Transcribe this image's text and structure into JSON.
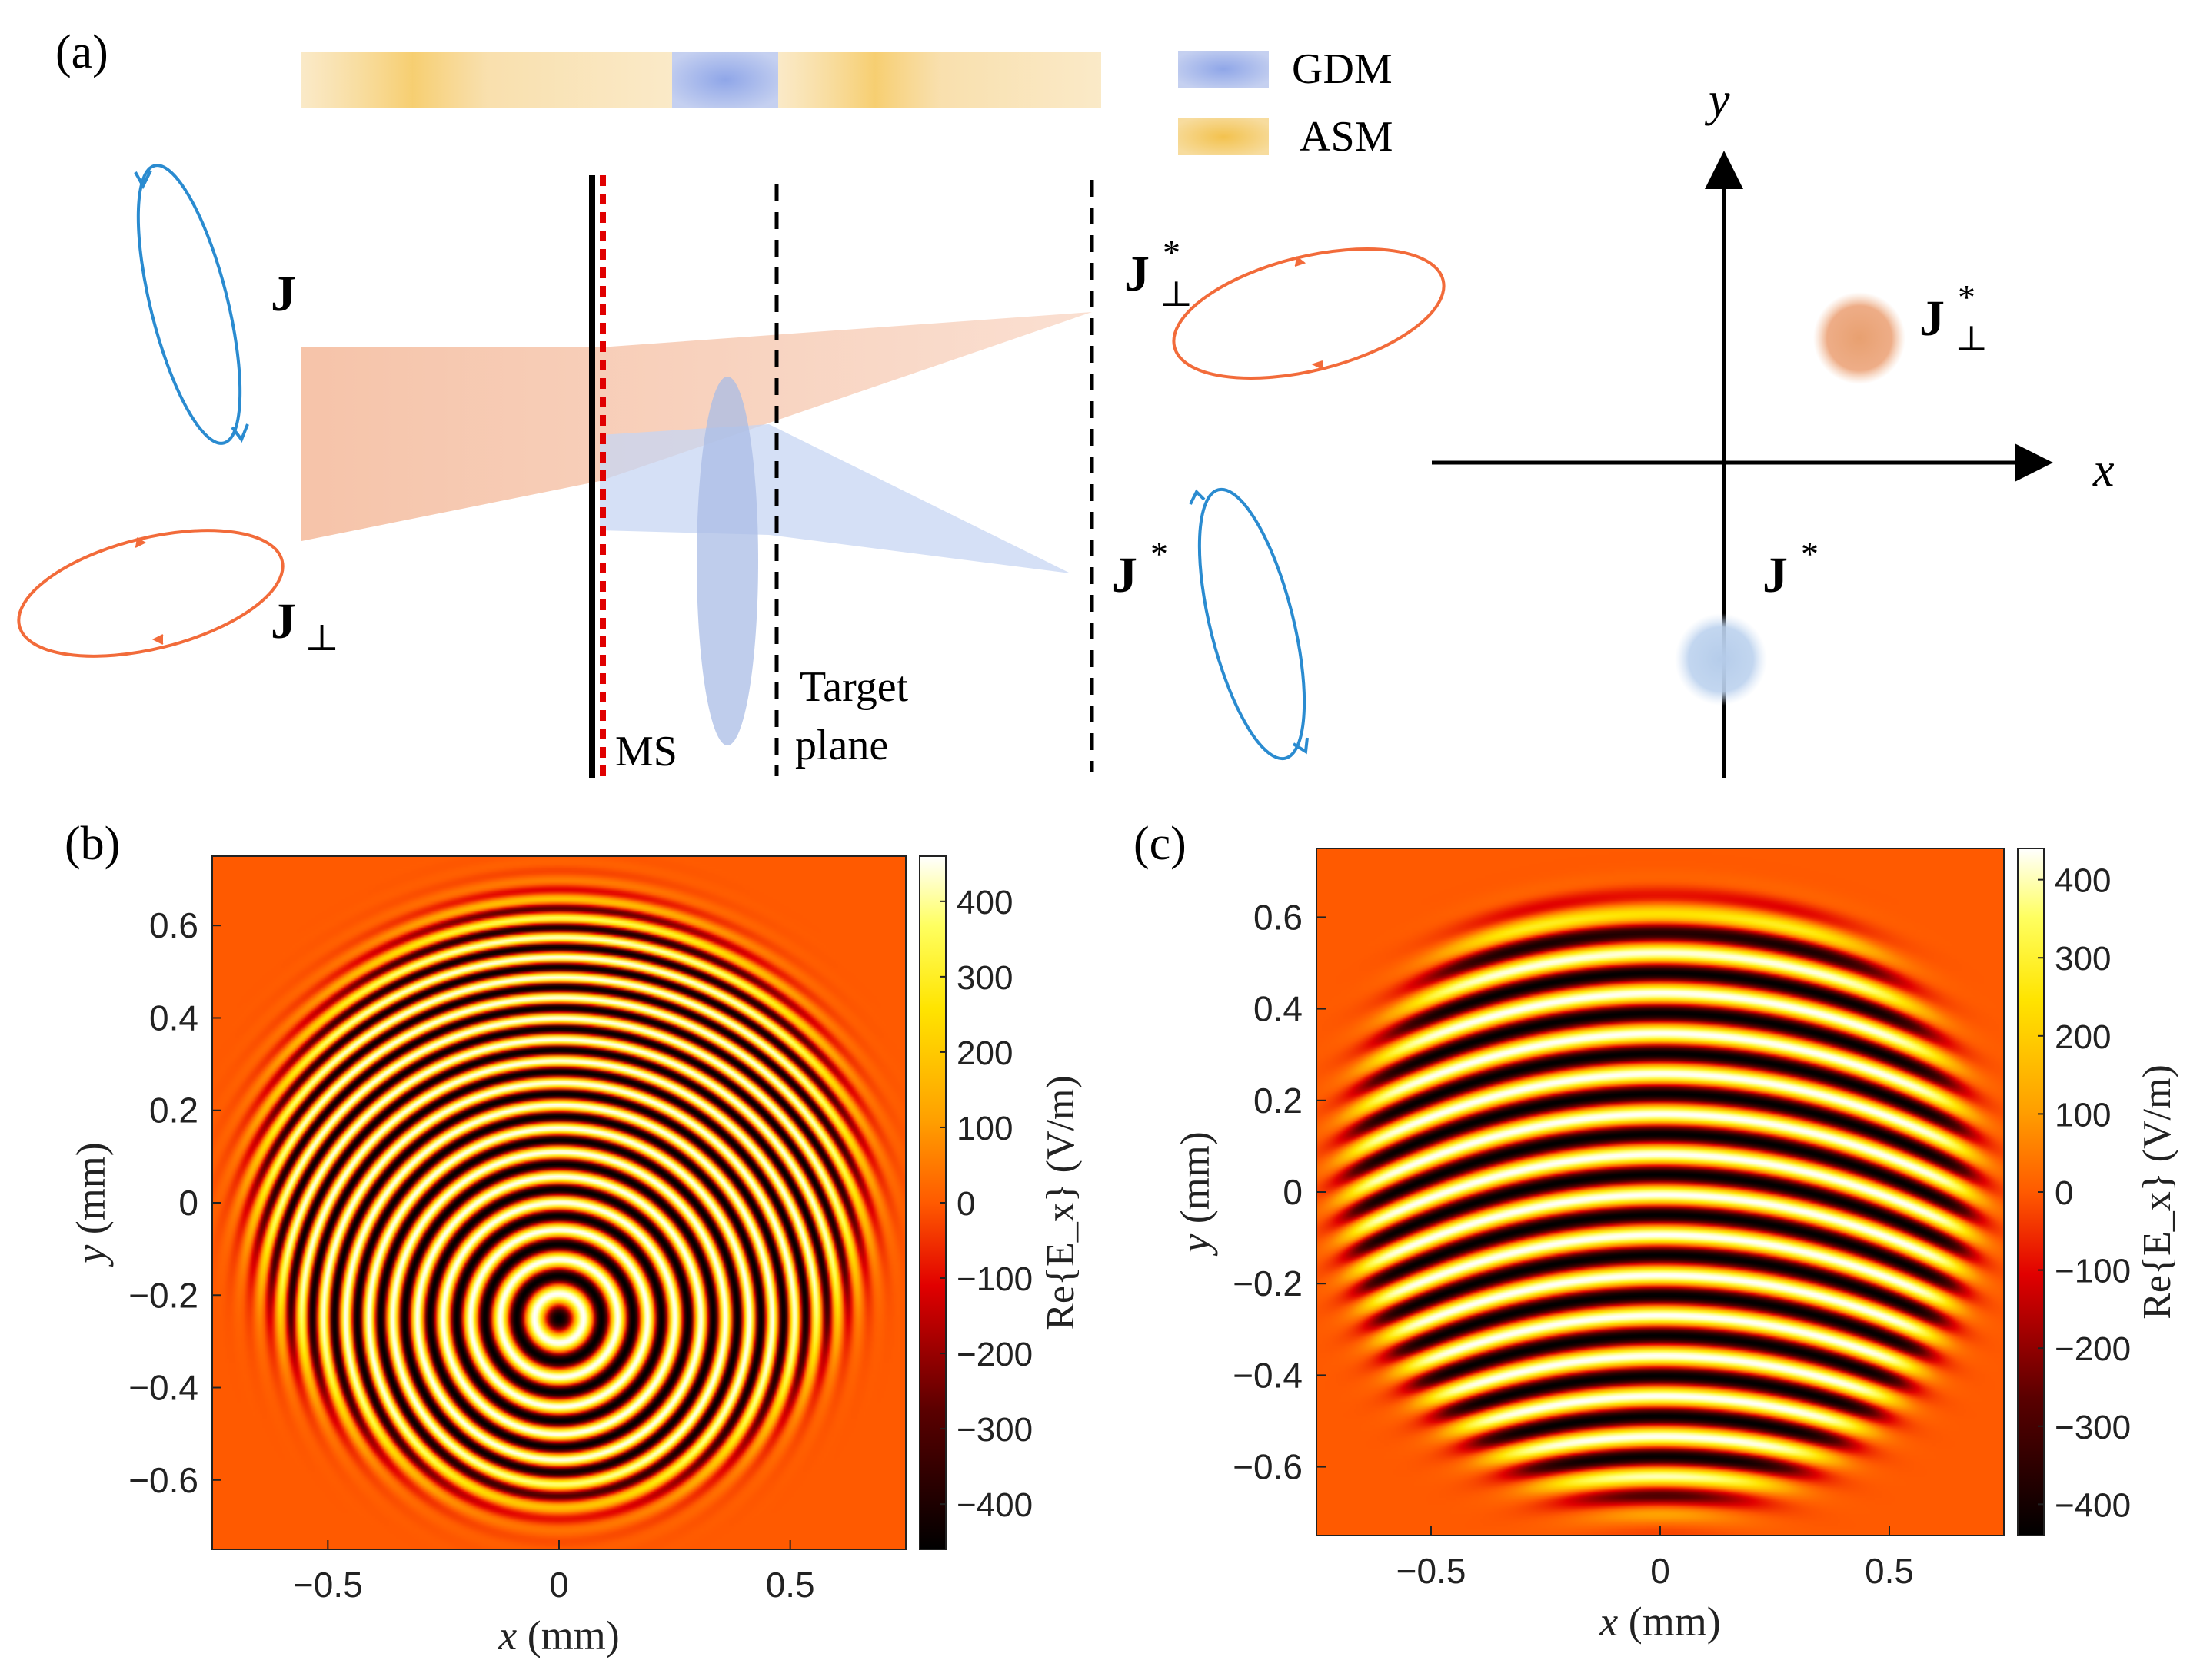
{
  "panels": {
    "a": "(a)",
    "b": "(b)",
    "c": "(c)"
  },
  "legend": {
    "gdm": "GDM",
    "asm": "ASM"
  },
  "diagram": {
    "j": "J",
    "j_perp": "J",
    "j_star": "J",
    "j_perp_star": "J",
    "perp_sub": "⊥",
    "star_sup": "*",
    "ms": "MS",
    "target_line1": "Target",
    "target_line2": "plane",
    "axis_x": "x",
    "axis_y": "y"
  },
  "chart_data": [
    {
      "type": "heatmap",
      "panel": "(b)",
      "description_key": "concentric rings centered near (0, -0.25) mm",
      "xlabel_var": "x",
      "xlabel_unit": " (mm)",
      "ylabel_var": "y",
      "ylabel_unit": " (mm)",
      "xlim": [
        -0.75,
        0.75
      ],
      "ylim": [
        -0.75,
        0.75
      ],
      "xticks": [
        -0.5,
        0,
        0.5
      ],
      "xtick_labels": [
        "−0.5",
        "0",
        "0.5"
      ],
      "yticks": [
        0.6,
        0.4,
        0.2,
        0,
        -0.2,
        -0.4,
        -0.6
      ],
      "ytick_labels": [
        "0.6",
        "0.4",
        "0.2",
        "0",
        "−0.2",
        "−0.4",
        "−0.6"
      ],
      "pattern_center": [
        0,
        -0.25
      ],
      "aperture_radius": 0.65,
      "colorbar_label": "Re{E_x} (V/m)",
      "colorbar_ticks": [
        400,
        300,
        200,
        100,
        0,
        -100,
        -200,
        -300,
        -400
      ],
      "colorbar_tick_labels": [
        "400",
        "300",
        "200",
        "100",
        "0",
        "−100",
        "−200",
        "−300",
        "−400"
      ],
      "clim": [
        -460,
        460
      ]
    },
    {
      "type": "heatmap",
      "panel": "(c)",
      "description_key": "curved horizontal fringes within circular aperture",
      "xlabel_var": "x",
      "xlabel_unit": " (mm)",
      "ylabel_var": "y",
      "ylabel_unit": " (mm)",
      "xlim": [
        -0.75,
        0.75
      ],
      "ylim": [
        -0.75,
        0.75
      ],
      "xticks": [
        -0.5,
        0,
        0.5
      ],
      "xtick_labels": [
        "−0.5",
        "0",
        "0.5"
      ],
      "yticks": [
        0.6,
        0.4,
        0.2,
        0,
        -0.2,
        -0.4,
        -0.6
      ],
      "ytick_labels": [
        "0.6",
        "0.4",
        "0.2",
        "0",
        "−0.2",
        "−0.4",
        "−0.6"
      ],
      "aperture_radius": 0.68,
      "colorbar_label": "Re{E_x} (V/m)",
      "colorbar_ticks": [
        400,
        300,
        200,
        100,
        0,
        -100,
        -200,
        -300,
        -400
      ],
      "colorbar_tick_labels": [
        "400",
        "300",
        "200",
        "100",
        "0",
        "−100",
        "−200",
        "−300",
        "−400"
      ],
      "clim": [
        -440,
        440
      ]
    }
  ]
}
